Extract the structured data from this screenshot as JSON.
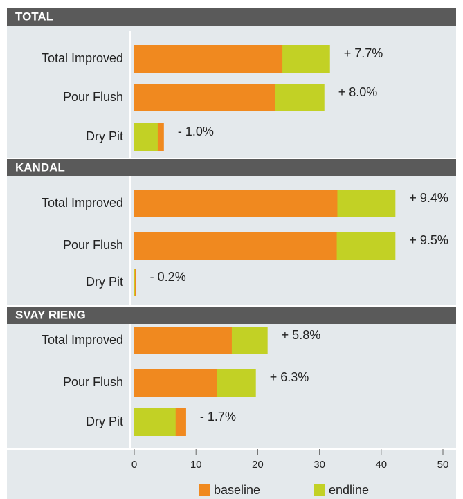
{
  "chart_data": [
    {
      "type": "bar",
      "orientation": "horizontal",
      "title": "TOTAL",
      "categories": [
        "Total Improved",
        "Pour Flush",
        "Dry Pit"
      ],
      "series": [
        {
          "name": "baseline",
          "color": "#f0891f",
          "values": [
            24.0,
            22.8,
            4.8
          ]
        },
        {
          "name": "endline",
          "color": "#c2d125",
          "values": [
            31.7,
            30.8,
            3.8
          ]
        }
      ],
      "change_labels": [
        "+ 7.7%",
        "+ 8.0%",
        "- 1.0%"
      ],
      "xlim": [
        0,
        50
      ]
    },
    {
      "type": "bar",
      "orientation": "horizontal",
      "title": "KANDAL",
      "categories": [
        "Total Improved",
        "Pour Flush",
        "Dry Pit"
      ],
      "series": [
        {
          "name": "baseline",
          "color": "#f0891f",
          "values": [
            32.9,
            32.8,
            0.3
          ]
        },
        {
          "name": "endline",
          "color": "#c2d125",
          "values": [
            42.3,
            42.3,
            0.1
          ]
        }
      ],
      "change_labels": [
        "+ 9.4%",
        "+ 9.5%",
        "- 0.2%"
      ],
      "xlim": [
        0,
        50
      ]
    },
    {
      "type": "bar",
      "orientation": "horizontal",
      "title": "SVAY RIENG",
      "categories": [
        "Total Improved",
        "Pour Flush",
        "Dry Pit"
      ],
      "series": [
        {
          "name": "baseline",
          "color": "#f0891f",
          "values": [
            15.8,
            13.4,
            8.4
          ]
        },
        {
          "name": "endline",
          "color": "#c2d125",
          "values": [
            21.6,
            19.7,
            6.7
          ]
        }
      ],
      "change_labels": [
        "+ 5.8%",
        "+ 6.3%",
        "- 1.7%"
      ],
      "xlim": [
        0,
        50
      ],
      "xticks": [
        0,
        10,
        20,
        30,
        40,
        50
      ]
    }
  ]
}
